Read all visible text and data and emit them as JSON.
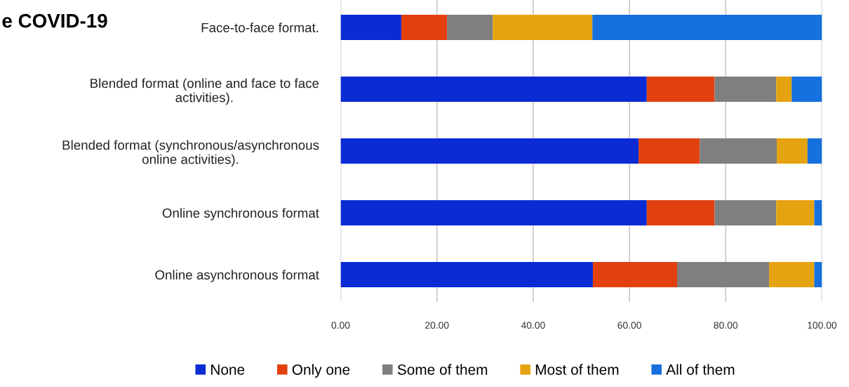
{
  "chart_data": {
    "type": "bar",
    "orientation": "horizontal",
    "stacked": true,
    "title": "e COVID-19",
    "categories": [
      "Face-to-face format.",
      "Blended format (online and face to face\nactivities).",
      "Blended format (synchronous/asynchronous\nonline activities).",
      "Online synchronous format",
      "Online asynchronous format"
    ],
    "series": [
      {
        "name": "None",
        "color": "#0b2bd4",
        "values": [
          12.6,
          63.6,
          61.9,
          63.6,
          52.4
        ]
      },
      {
        "name": "Only one",
        "color": "#e2400f",
        "values": [
          9.5,
          14.1,
          12.7,
          14.1,
          17.5
        ]
      },
      {
        "name": "Some of them",
        "color": "#7f7f7f",
        "values": [
          9.5,
          12.8,
          16.0,
          12.8,
          19.1
        ]
      },
      {
        "name": "Most of them",
        "color": "#e6a311",
        "values": [
          20.7,
          3.2,
          6.4,
          7.9,
          9.4
        ]
      },
      {
        "name": "All of them",
        "color": "#1670de",
        "values": [
          47.7,
          6.3,
          3.0,
          1.6,
          1.6
        ]
      }
    ],
    "xlim": [
      0,
      100
    ],
    "xticks": [
      {
        "value": 0,
        "label": "0.00"
      },
      {
        "value": 20,
        "label": "20.00"
      },
      {
        "value": 40,
        "label": "40.00"
      },
      {
        "value": 60,
        "label": "60.00"
      },
      {
        "value": 80,
        "label": "80.00"
      },
      {
        "value": 100,
        "label": "100.00"
      }
    ],
    "grid": "x",
    "legend": "bottom"
  }
}
